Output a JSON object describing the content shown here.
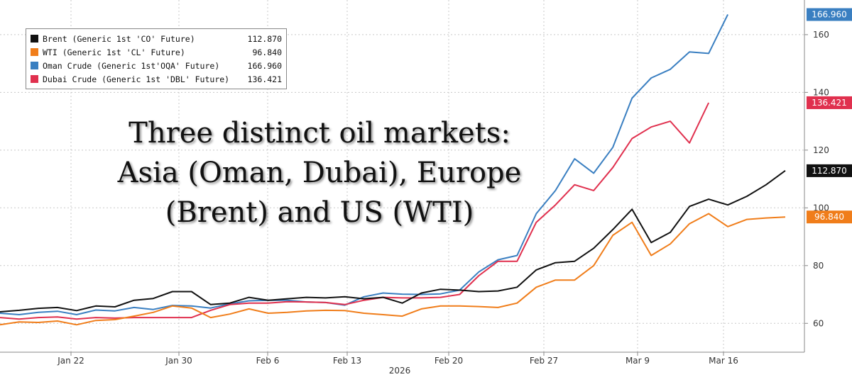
{
  "chart_data": {
    "type": "line",
    "xlabel": "2026",
    "x_ticks": [
      "Jan 22",
      "Jan 30",
      "Feb 6",
      "Feb 13",
      "Feb 20",
      "Feb 27",
      "Mar 9",
      "Mar 16"
    ],
    "y_ticks": [
      60,
      80,
      100,
      120,
      140,
      160
    ],
    "ylim": [
      50,
      172
    ],
    "grid": true,
    "legend_position": "top-left",
    "annotation": [
      "Three distinct oil markets:",
      "Asia (Oman, Dubai), Europe",
      "(Brent) and US (WTI)"
    ],
    "series": [
      {
        "name": "Oman Crude (Generic 1st'OQA' Future)",
        "last": "166.960",
        "color": "#3a7fc1",
        "values": [
          63.5,
          63.0,
          63.8,
          64.2,
          63.0,
          64.6,
          64.3,
          65.5,
          64.8,
          66.2,
          66.0,
          65.3,
          66.8,
          67.8,
          68.0,
          68.0,
          67.4,
          67.2,
          66.3,
          69.2,
          70.5,
          70.1,
          70.0,
          70.2,
          71.5,
          77.8,
          82.0,
          83.5,
          98,
          106,
          117,
          112,
          121,
          138,
          145,
          148,
          154,
          153.5,
          167
        ]
      },
      {
        "name": "Dubai Crude (Generic 1st 'DBL' Future)",
        "last": "136.421",
        "color": "#e0304e",
        "values": [
          62.0,
          61.5,
          62.0,
          62.2,
          61.5,
          62.0,
          61.8,
          62.0,
          62.0,
          62.0,
          62.0,
          64.5,
          66.5,
          67.0,
          67.0,
          67.5,
          67.4,
          67.2,
          66.5,
          68.0,
          69.0,
          68.8,
          68.8,
          69.0,
          70.0,
          76.5,
          81.5,
          81.5,
          95,
          101,
          108,
          106,
          114,
          124,
          128,
          130,
          122.5,
          136.4
        ]
      },
      {
        "name": "Brent (Generic 1st 'CO' Future)",
        "last": "112.870",
        "color": "#111111",
        "values": [
          64.0,
          64.5,
          65.2,
          65.5,
          64.4,
          66.0,
          65.7,
          68.0,
          68.6,
          71.0,
          71.0,
          66.5,
          67.0,
          69.0,
          68.0,
          68.5,
          69.0,
          68.8,
          69.2,
          68.5,
          69.0,
          67.0,
          70.5,
          71.8,
          71.5,
          71.0,
          71.2,
          72.5,
          78.5,
          81.0,
          81.5,
          86,
          92.5,
          99.5,
          88,
          91.5,
          100.5,
          103,
          101,
          104,
          108,
          112.9
        ]
      },
      {
        "name": "WTI (Generic 1st 'CL' Future)",
        "last": "96.840",
        "color": "#f07d1a",
        "values": [
          59.5,
          60.5,
          60.3,
          60.8,
          59.5,
          61.0,
          61.3,
          62.5,
          63.8,
          66.0,
          65.3,
          62.0,
          63.2,
          65.0,
          63.5,
          63.8,
          64.3,
          64.5,
          64.4,
          63.5,
          63.0,
          62.5,
          65.0,
          66.0,
          66.0,
          65.8,
          65.5,
          67.0,
          72.5,
          75.0,
          75.0,
          80,
          90.5,
          95,
          83.5,
          87.5,
          94.5,
          98,
          93.5,
          96,
          96.5,
          96.8
        ]
      }
    ]
  }
}
